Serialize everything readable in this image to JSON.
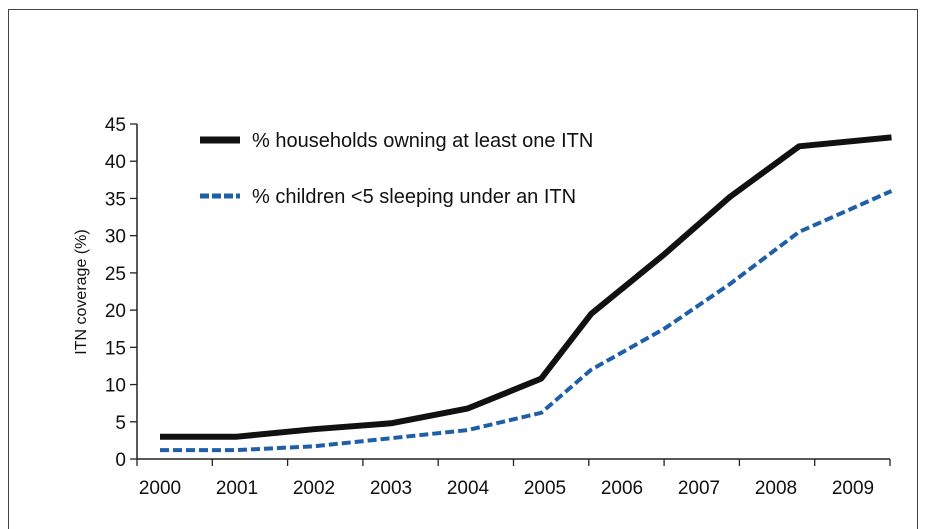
{
  "chart_data": {
    "type": "line",
    "title": "",
    "xlabel": "",
    "ylabel": "ITN coverage (%)",
    "categories": [
      "2000",
      "2001",
      "2002",
      "2003",
      "2004",
      "2005",
      "2006",
      "2007",
      "2008",
      "2009"
    ],
    "yticks": [
      "0",
      "5",
      "10",
      "15",
      "20",
      "25",
      "30",
      "35",
      "40",
      "45"
    ],
    "ylim": [
      0,
      45
    ],
    "grid": false,
    "legend_position": "top-left",
    "series": [
      {
        "name": "% households owning at least one ITN",
        "values": [
          3,
          3,
          4,
          4.8,
          6.8,
          10.8,
          19.5,
          27.5,
          35.2,
          42,
          43.2
        ],
        "x": [
          2000,
          2001,
          2002,
          2003,
          2004,
          2004.95,
          2005.6,
          2006.55,
          2007.4,
          2008.3,
          2009.5
        ],
        "color": "#111111",
        "style": "solid"
      },
      {
        "name": "% children <5 sleeping under an ITN",
        "values": [
          1.2,
          1.2,
          1.7,
          2.8,
          3.9,
          6.2,
          12,
          17.5,
          23.5,
          30.5,
          36
        ],
        "x": [
          2000,
          2001,
          2002,
          2003,
          2004,
          2004.95,
          2005.6,
          2006.55,
          2007.4,
          2008.3,
          2009.5
        ],
        "color": "#1f5fa8",
        "style": "dashed"
      }
    ]
  }
}
